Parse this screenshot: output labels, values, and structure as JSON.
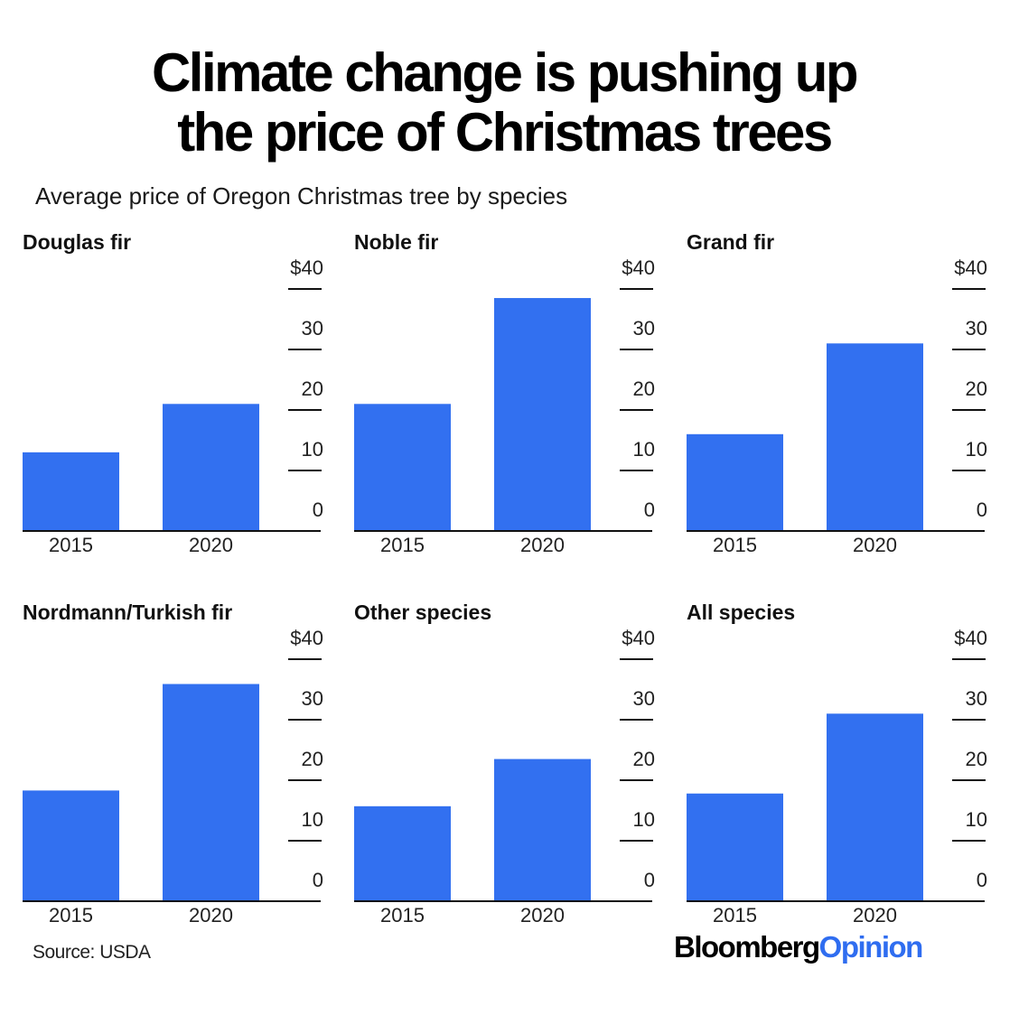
{
  "title_line1": "Climate change is pushing up",
  "title_line2": "the price of Christmas trees",
  "subtitle": "Average price of Oregon Christmas tree by species",
  "source": "Source: USDA",
  "brand": {
    "part1": "Bloomberg",
    "part2": "Opinion"
  },
  "colors": {
    "bar": "#3270f0",
    "text": "#000000",
    "brand_accent": "#2f6df0"
  },
  "chart_data": [
    {
      "type": "bar",
      "title": "Douglas fir",
      "categories": [
        "2015",
        "2020"
      ],
      "values": [
        13,
        21
      ],
      "ylim": [
        0,
        40
      ],
      "yticks": [
        "0",
        "10",
        "20",
        "30",
        "$40"
      ]
    },
    {
      "type": "bar",
      "title": "Noble fir",
      "categories": [
        "2015",
        "2020"
      ],
      "values": [
        21,
        38.5
      ],
      "ylim": [
        0,
        40
      ],
      "yticks": [
        "0",
        "10",
        "20",
        "30",
        "$40"
      ]
    },
    {
      "type": "bar",
      "title": "Grand fir",
      "categories": [
        "2015",
        "2020"
      ],
      "values": [
        16,
        31
      ],
      "ylim": [
        0,
        40
      ],
      "yticks": [
        "0",
        "10",
        "20",
        "30",
        "$40"
      ]
    },
    {
      "type": "bar",
      "title": "Nordmann/Turkish fir",
      "categories": [
        "2015",
        "2020"
      ],
      "values": [
        18.3,
        35.9
      ],
      "ylim": [
        0,
        40
      ],
      "yticks": [
        "0",
        "10",
        "20",
        "30",
        "$40"
      ]
    },
    {
      "type": "bar",
      "title": "Other species",
      "categories": [
        "2015",
        "2020"
      ],
      "values": [
        15.7,
        23.5
      ],
      "ylim": [
        0,
        40
      ],
      "yticks": [
        "0",
        "10",
        "20",
        "30",
        "$40"
      ]
    },
    {
      "type": "bar",
      "title": "All species",
      "categories": [
        "2015",
        "2020"
      ],
      "values": [
        17.8,
        31
      ],
      "ylim": [
        0,
        40
      ],
      "yticks": [
        "0",
        "10",
        "20",
        "30",
        "$40"
      ]
    }
  ]
}
